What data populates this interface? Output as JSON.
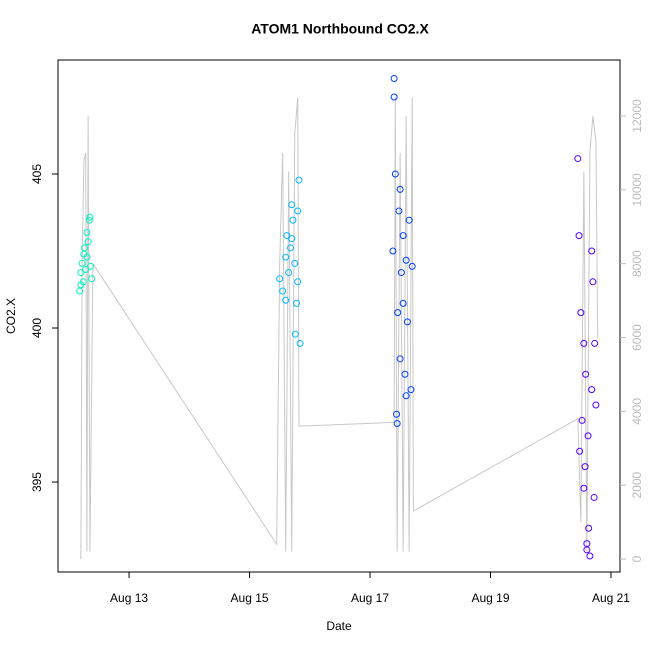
{
  "chart_data": {
    "type": "scatter",
    "title": "ATOM1 Northbound CO2.X",
    "x_label": "Date",
    "y_label": "CO2.X",
    "xlim": [
      11.82,
      21.15
    ],
    "xticks": [
      {
        "value": 13,
        "label": "Aug 13"
      },
      {
        "value": 15,
        "label": "Aug 15"
      },
      {
        "value": 17,
        "label": "Aug 17"
      },
      {
        "value": 19,
        "label": "Aug 19"
      },
      {
        "value": 21,
        "label": "Aug 21"
      }
    ],
    "ylim": [
      392.08,
      408.7
    ],
    "yticks": [
      395,
      400,
      405
    ],
    "y2lim": [
      -352,
      13517
    ],
    "y2ticks": [
      0,
      2000,
      4000,
      6000,
      8000,
      10000,
      12000
    ],
    "y2_color": "#bbbbbb",
    "series": [
      {
        "color": "#00f5c0",
        "x": [
          12.18,
          12.2,
          12.22,
          12.24,
          12.26,
          12.28,
          12.3,
          12.32,
          12.34,
          12.36,
          12.38,
          12.2,
          12.25,
          12.3,
          12.35
        ],
        "values": [
          401.2,
          401.8,
          402.1,
          401.5,
          402.6,
          401.9,
          402.3,
          402.8,
          403.5,
          402.0,
          401.6,
          401.4,
          402.4,
          403.1,
          403.6
        ]
      },
      {
        "color": "#00b8ff",
        "x": [
          15.5,
          15.55,
          15.6,
          15.62,
          15.65,
          15.68,
          15.7,
          15.72,
          15.75,
          15.78,
          15.8,
          15.82,
          15.6,
          15.7,
          15.76,
          15.8,
          15.84
        ],
        "values": [
          401.6,
          401.2,
          402.3,
          403.0,
          401.8,
          402.6,
          404.0,
          403.5,
          402.1,
          400.8,
          401.5,
          404.8,
          400.9,
          402.9,
          399.8,
          403.8,
          399.5
        ]
      },
      {
        "color": "#0040ff",
        "x": [
          17.38,
          17.4,
          17.42,
          17.44,
          17.46,
          17.48,
          17.5,
          17.52,
          17.55,
          17.58,
          17.6,
          17.62,
          17.65,
          17.68,
          17.7,
          17.4,
          17.45,
          17.5,
          17.55,
          17.6
        ],
        "values": [
          402.5,
          407.5,
          405.0,
          397.2,
          400.5,
          403.8,
          399.0,
          401.8,
          403.0,
          398.5,
          402.2,
          400.2,
          403.5,
          398.0,
          402.0,
          408.1,
          396.9,
          404.5,
          400.8,
          397.8
        ]
      },
      {
        "color": "#5500ff",
        "x": [
          20.45,
          20.47,
          20.5,
          20.52,
          20.55,
          20.57,
          20.6,
          20.62,
          20.65,
          20.68,
          20.7,
          20.72,
          20.75,
          20.48,
          20.58,
          20.63,
          20.68,
          20.73,
          20.55,
          20.6
        ],
        "values": [
          405.5,
          403.0,
          400.5,
          397.0,
          399.5,
          395.5,
          393.0,
          396.5,
          392.6,
          398.0,
          401.5,
          394.5,
          397.5,
          396.0,
          398.5,
          393.5,
          402.5,
          399.5,
          394.8,
          392.8
        ]
      },
      {
        "type": "line",
        "axis": "y2",
        "color": "#c8c8c8",
        "x": [
          12.2,
          12.22,
          12.25,
          12.28,
          12.3,
          12.32,
          12.35,
          12.4,
          15.45,
          15.5,
          15.55,
          15.6,
          15.65,
          15.7,
          15.75,
          15.8,
          15.82,
          17.4,
          17.42,
          17.45,
          17.5,
          17.55,
          17.6,
          17.65,
          17.7,
          17.72,
          20.45,
          20.5,
          20.55,
          20.6,
          20.65,
          20.7,
          20.75,
          20.78
        ],
        "values": [
          0,
          8000,
          10800,
          11000,
          200,
          12000,
          200,
          8000,
          400,
          8000,
          11000,
          200,
          10500,
          200,
          11500,
          12500,
          3600,
          3700,
          12500,
          200,
          11000,
          200,
          12000,
          200,
          12500,
          1300,
          3800,
          1000,
          10500,
          200,
          11000,
          12000,
          11300,
          6000
        ]
      }
    ]
  }
}
